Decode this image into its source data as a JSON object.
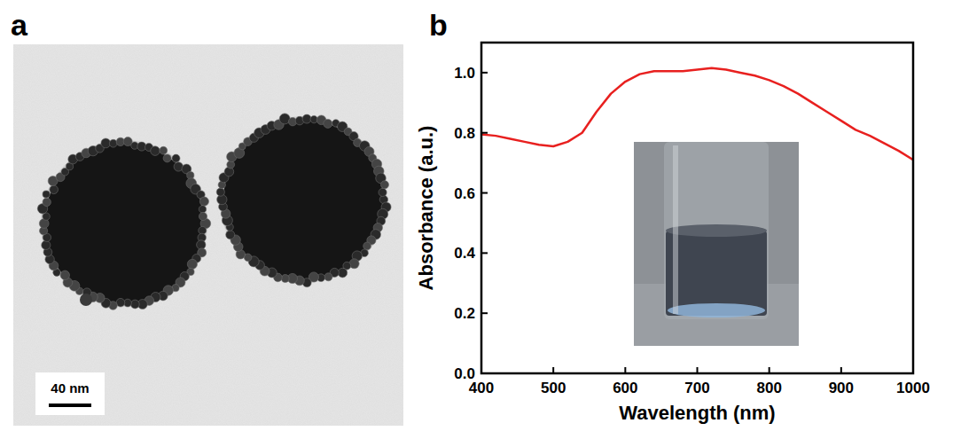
{
  "panel_letters": [
    "a",
    "b"
  ],
  "tem_image": {
    "scale_bar": "40 nm"
  },
  "chart_data": {
    "type": "line",
    "x_label": "Wavelength (nm)",
    "y_label": "Absorbance (a.u.)",
    "x": [
      400,
      420,
      440,
      460,
      480,
      500,
      520,
      540,
      560,
      580,
      600,
      620,
      640,
      660,
      680,
      700,
      720,
      740,
      760,
      780,
      800,
      820,
      840,
      860,
      880,
      900,
      920,
      940,
      960,
      980,
      1000
    ],
    "values": [
      0.795,
      0.79,
      0.78,
      0.77,
      0.76,
      0.755,
      0.77,
      0.8,
      0.87,
      0.93,
      0.97,
      0.995,
      1.005,
      1.005,
      1.005,
      1.01,
      1.015,
      1.01,
      1.0,
      0.99,
      0.975,
      0.955,
      0.93,
      0.9,
      0.87,
      0.84,
      0.81,
      0.79,
      0.765,
      0.74,
      0.71
    ],
    "color": "#e8201f",
    "xlim": [
      400,
      1000
    ],
    "xticks": [
      400,
      500,
      600,
      700,
      800,
      900,
      1000
    ],
    "ylim": [
      0,
      1.1
    ],
    "yticks": [
      {
        "value": 0,
        "label": "0.0"
      },
      {
        "value": 0.2,
        "label": "0.2"
      },
      {
        "value": 0.4,
        "label": "0.4"
      },
      {
        "value": 0.6,
        "label": "0.6"
      },
      {
        "value": 0.8,
        "label": "0.8"
      },
      {
        "value": 1.0,
        "label": "1.0"
      }
    ],
    "grid": false
  }
}
